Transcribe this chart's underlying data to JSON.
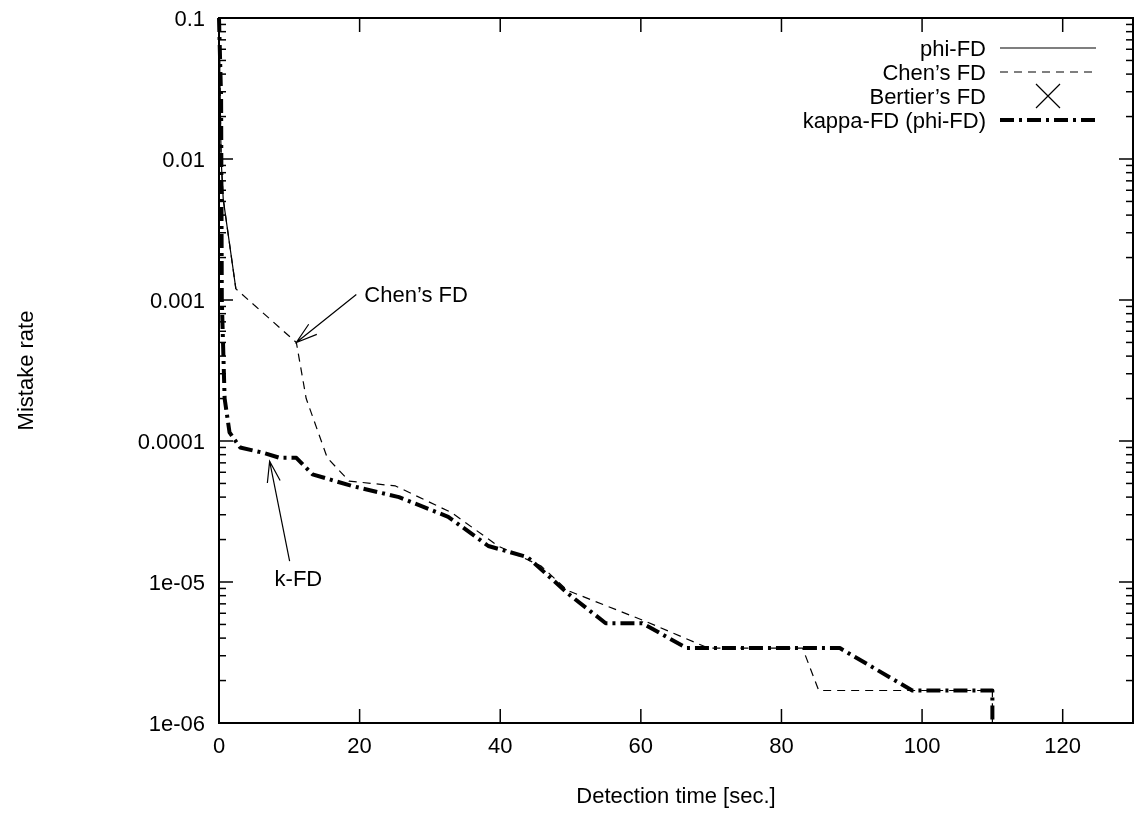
{
  "chart_data": {
    "type": "line",
    "xlabel": "Detection time [sec.]",
    "ylabel": "Mistake rate",
    "log": "y",
    "xlim": [
      0,
      130
    ],
    "ylim": [
      1e-06,
      0.1
    ],
    "xticks": [
      0,
      20,
      40,
      60,
      80,
      100,
      120
    ],
    "yticks": [
      {
        "value": 1e-06,
        "label": "1e-06"
      },
      {
        "value": 2e-06,
        "label": null
      },
      {
        "value": 3e-06,
        "label": null
      },
      {
        "value": 4e-06,
        "label": null
      },
      {
        "value": 5e-06,
        "label": null
      },
      {
        "value": 6e-06,
        "label": null
      },
      {
        "value": 7e-06,
        "label": null
      },
      {
        "value": 8e-06,
        "label": null
      },
      {
        "value": 9e-06,
        "label": null
      },
      {
        "value": 1e-05,
        "label": "1e-05"
      },
      {
        "value": 2e-05,
        "label": null
      },
      {
        "value": 3e-05,
        "label": null
      },
      {
        "value": 4e-05,
        "label": null
      },
      {
        "value": 5e-05,
        "label": null
      },
      {
        "value": 6e-05,
        "label": null
      },
      {
        "value": 7e-05,
        "label": null
      },
      {
        "value": 8e-05,
        "label": null
      },
      {
        "value": 9e-05,
        "label": null
      },
      0.0001,
      {
        "value": 0.0002,
        "label": null
      },
      {
        "value": 0.0003,
        "label": null
      },
      {
        "value": 0.0004,
        "label": null
      },
      {
        "value": 0.0005,
        "label": null
      },
      {
        "value": 0.0006,
        "label": null
      },
      {
        "value": 0.0007,
        "label": null
      },
      {
        "value": 0.0008,
        "label": null
      },
      {
        "value": 0.0009,
        "label": null
      },
      0.001,
      {
        "value": 0.002,
        "label": null
      },
      {
        "value": 0.003,
        "label": null
      },
      {
        "value": 0.004,
        "label": null
      },
      {
        "value": 0.005,
        "label": null
      },
      {
        "value": 0.006,
        "label": null
      },
      {
        "value": 0.007,
        "label": null
      },
      {
        "value": 0.008,
        "label": null
      },
      {
        "value": 0.009,
        "label": null
      },
      0.01,
      {
        "value": 0.02,
        "label": null
      },
      {
        "value": 0.03,
        "label": null
      },
      {
        "value": 0.04,
        "label": null
      },
      {
        "value": 0.05,
        "label": null
      },
      {
        "value": 0.06,
        "label": null
      },
      {
        "value": 0.07,
        "label": null
      },
      {
        "value": 0.08,
        "label": null
      },
      {
        "value": 0.09,
        "label": null
      },
      0.1
    ],
    "grid": false,
    "legend": "top right",
    "marker": "none",
    "series": [
      {
        "name": "phi-FD",
        "color": "#000000",
        "line_style": "solid",
        "x": [
          0,
          0.3,
          0.6,
          2.4
        ],
        "values": [
          0.1,
          0.01,
          0.0052,
          0.0012
        ]
      },
      {
        "name": "Chen’s FD",
        "color": "#000000",
        "line_style": "dashed",
        "x": [
          0,
          0.3,
          0.6,
          2.4,
          11,
          12.4,
          15.4,
          18.5,
          25.1,
          33.1,
          39.7,
          45.8,
          49.6,
          60.5,
          69.6,
          83,
          85.3,
          110,
          110
        ],
        "values": [
          0.1,
          0.01,
          0.0052,
          0.0012,
          0.0005,
          0.0002,
          7.6e-05,
          5.2e-05,
          4.8e-05,
          3.1e-05,
          1.8e-05,
          1.3e-05,
          8.7e-06,
          5.3e-06,
          3.4e-06,
          3.4e-06,
          1.7e-06,
          1.7e-06,
          1e-06
        ]
      },
      {
        "name": "Bertier’s FD",
        "color": "#000000",
        "type": "scatter",
        "marker": "cross"
      },
      {
        "name": "kappa-FD (phi-FD)",
        "color": "#000000",
        "line_style": "dashdot",
        "x": [
          0,
          0.3,
          0.4,
          0.8,
          1.5,
          3,
          6.5,
          8.6,
          11,
          13.3,
          18.9,
          25.6,
          32.6,
          38.3,
          43.9,
          49.6,
          55,
          60.2,
          66.5,
          88.3,
          98.6,
          110,
          110
        ],
        "values": [
          0.1,
          0.027,
          0.001,
          0.0002,
          0.000115,
          9e-05,
          8.2e-05,
          7.6e-05,
          7.6e-05,
          5.8e-05,
          4.8e-05,
          4e-05,
          2.9e-05,
          1.8e-05,
          1.5e-05,
          8.3e-06,
          5.1e-06,
          5.1e-06,
          3.4e-06,
          3.4e-06,
          1.7e-06,
          1.7e-06,
          1e-06
        ]
      }
    ],
    "annotations": [
      {
        "text": "Chen’s FD",
        "x": 11,
        "y": 0.0005
      },
      {
        "text": "k-FD",
        "x": 7.2,
        "y": 7.2e-05
      }
    ]
  }
}
